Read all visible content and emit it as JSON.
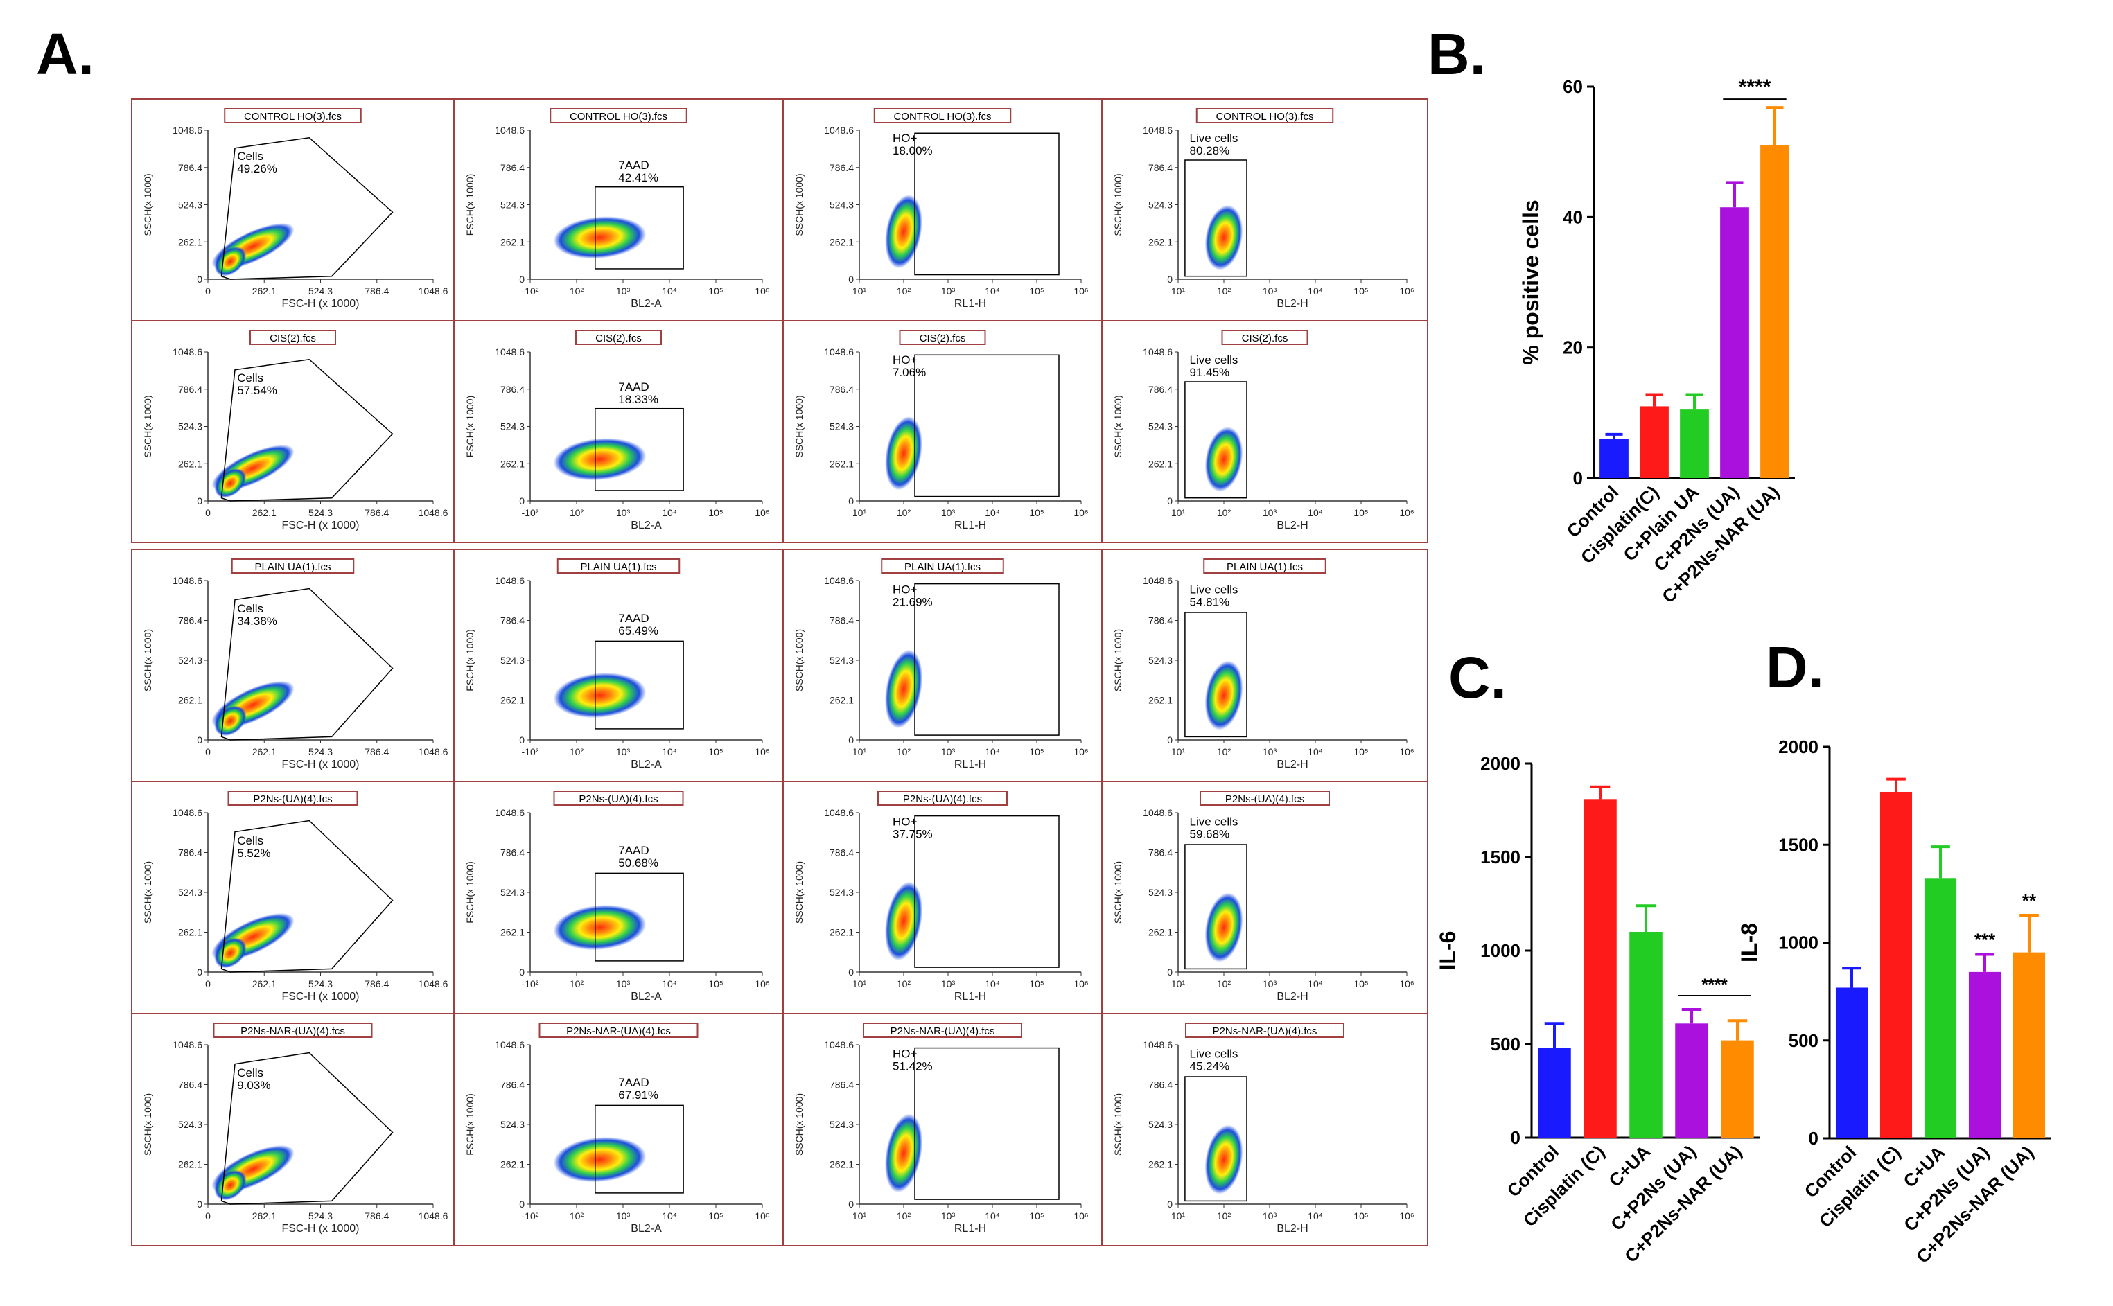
{
  "panels": {
    "a": "A.",
    "b": "B.",
    "c": "C.",
    "d": "D."
  },
  "flow": {
    "samples": [
      {
        "name": "CONTROL HO(3).fcs",
        "cells": "49.26%",
        "aad": "42.41%",
        "ho": "18.00%",
        "live": "80.28%"
      },
      {
        "name": "CIS(2).fcs",
        "cells": "57.54%",
        "aad": "18.33%",
        "ho": "7.06%",
        "live": "91.45%"
      },
      {
        "name": "PLAIN UA(1).fcs",
        "cells": "34.38%",
        "aad": "65.49%",
        "ho": "21.69%",
        "live": "54.81%"
      },
      {
        "name": "P2Ns-(UA)(4).fcs",
        "cells": "5.52%",
        "aad": "50.68%",
        "ho": "37.75%",
        "live": "59.68%"
      },
      {
        "name": "P2Ns-NAR-(UA)(4).fcs",
        "cells": "9.03%",
        "aad": "67.91%",
        "ho": "51.42%",
        "live": "45.24%"
      }
    ],
    "gate_labels": {
      "cells": "Cells",
      "aad": "7AAD",
      "ho": "HO+",
      "live": "Live cells"
    },
    "ylabels": [
      "SSCH(x 1000)",
      "FSCH(x 1000)",
      "SSCH(x 1000)",
      "SSCH(x 1000)"
    ],
    "xlabels": [
      "FSC-H (x 1000)",
      "BL2-A",
      "RL1-H",
      "BL2-H"
    ],
    "lin_ticks": [
      "0",
      "262.1",
      "524.3",
      "786.4",
      "1048.6"
    ],
    "log_ticks_bl2a": [
      "-10²",
      "10²",
      "10³",
      "10⁴",
      "10⁵",
      "10⁶"
    ],
    "log_ticks_rl1": [
      "10¹",
      "10²",
      "10³",
      "10⁴",
      "10⁵",
      "10⁶"
    ],
    "log_ticks_bl2h": [
      "10¹",
      "10²",
      "10³",
      "10⁴",
      "10⁵",
      "10⁶"
    ]
  },
  "chart_data": [
    {
      "type": "bar",
      "panel": "B",
      "categories": [
        "Control",
        "Cisplatin(C)",
        "C+Plain UA",
        "C+P2Ns (UA)",
        "C+P2Ns-NAR (UA)"
      ],
      "values": [
        6,
        11,
        10.5,
        41.5,
        51
      ],
      "errors": [
        0.7,
        1.8,
        2.3,
        3.8,
        5.8
      ],
      "colors": [
        "#1a1aff",
        "#ff1a1a",
        "#22cc22",
        "#aa11dd",
        "#ff8c00"
      ],
      "ylabel": "% positive cells",
      "ylim": [
        0,
        60
      ],
      "yticks": [
        0,
        20,
        40,
        60
      ],
      "significance": {
        "label": "****",
        "from": 3,
        "to": 4
      }
    },
    {
      "type": "bar",
      "panel": "C",
      "categories": [
        "Control",
        "Cisplatin (C)",
        "C+UA",
        "C+P2Ns (UA)",
        "C+P2Ns-NAR (UA)"
      ],
      "values": [
        480,
        1810,
        1100,
        610,
        520
      ],
      "errors": [
        130,
        65,
        140,
        75,
        105
      ],
      "colors": [
        "#1a1aff",
        "#ff1a1a",
        "#22cc22",
        "#aa11dd",
        "#ff8c00"
      ],
      "ylabel": "IL-6",
      "ylim": [
        0,
        2000
      ],
      "yticks": [
        0,
        500,
        1000,
        1500,
        2000
      ],
      "significance": {
        "label": "****",
        "from": 3,
        "to": 4
      }
    },
    {
      "type": "bar",
      "panel": "D",
      "categories": [
        "Control",
        "Cisplatin (C)",
        "C+UA",
        "C+P2Ns (UA)",
        "C+P2Ns-NAR (UA)"
      ],
      "values": [
        770,
        1770,
        1330,
        850,
        950
      ],
      "errors": [
        100,
        65,
        160,
        90,
        190
      ],
      "colors": [
        "#1a1aff",
        "#ff1a1a",
        "#22cc22",
        "#aa11dd",
        "#ff8c00"
      ],
      "ylabel": "IL-8",
      "ylim": [
        0,
        2000
      ],
      "yticks": [
        0,
        500,
        1000,
        1500,
        2000
      ],
      "bar_annotations": [
        "",
        "",
        "",
        "***",
        "**"
      ]
    }
  ]
}
